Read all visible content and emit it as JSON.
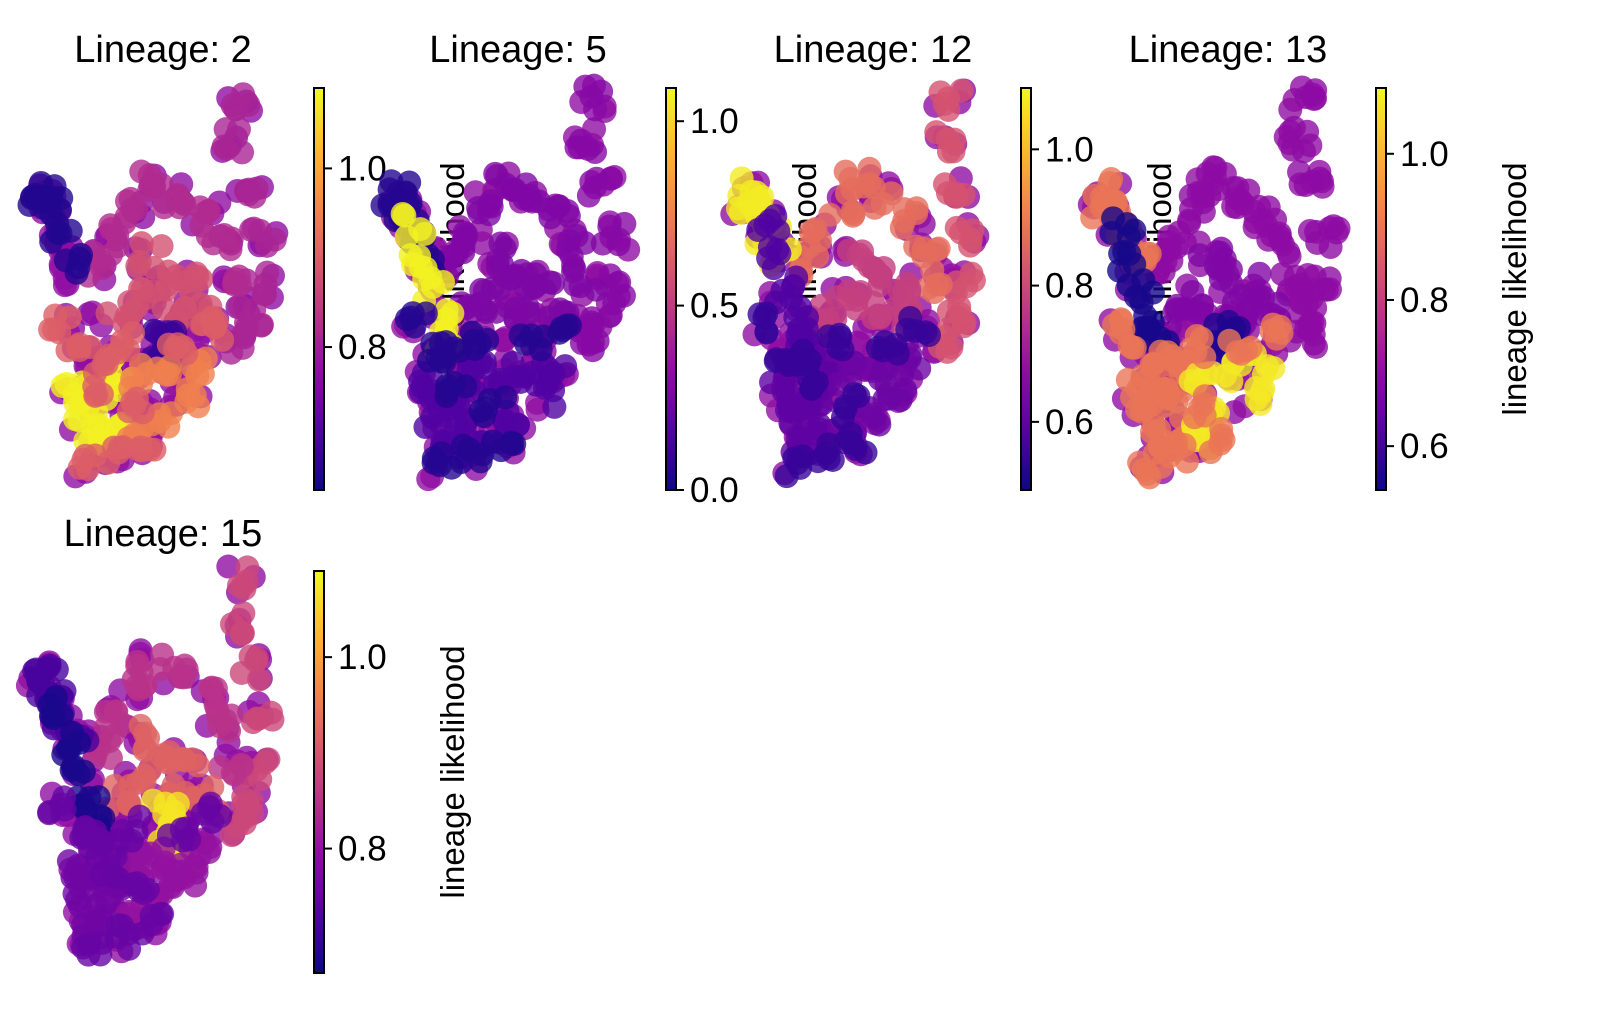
{
  "chart_data": {
    "type": "scatter",
    "colormap": "plasma",
    "point_alpha": 0.8,
    "panels": [
      {
        "title": "Lineage: 2",
        "colorbar": {
          "label": "lineage likelihood",
          "range": [
            0.64,
            1.09
          ],
          "ticks": [
            0.8,
            1.0
          ],
          "tick_labels": [
            "0.8",
            "1.0"
          ]
        },
        "regions": [
          {
            "region": "upper-arm",
            "value": 0.81
          },
          {
            "region": "upper-body",
            "value": 0.82
          },
          {
            "region": "center",
            "value": 0.88
          },
          {
            "region": "left-arm",
            "value": 0.66
          },
          {
            "region": "center-small-cluster",
            "value": 0.68
          },
          {
            "region": "lower-left",
            "value": 1.08
          },
          {
            "region": "lower-right",
            "value": 0.95
          },
          {
            "region": "bottom",
            "value": 0.9
          }
        ]
      },
      {
        "title": "Lineage: 5",
        "colorbar": {
          "label": "lineage likelihood",
          "range": [
            0.0,
            1.09
          ],
          "ticks": [
            0.0,
            0.5,
            1.0
          ],
          "tick_labels": [
            "0.0",
            "0.5",
            "1.0"
          ]
        },
        "regions": [
          {
            "region": "upper-arm",
            "value": 0.3
          },
          {
            "region": "upper-body",
            "value": 0.28
          },
          {
            "region": "center",
            "value": 0.27
          },
          {
            "region": "left-arm",
            "value": 0.05
          },
          {
            "region": "left-strip",
            "value": 1.07
          },
          {
            "region": "lower-left",
            "value": 0.15
          },
          {
            "region": "lower-right",
            "value": 0.15
          },
          {
            "region": "bottom",
            "value": 0.05
          }
        ]
      },
      {
        "title": "Lineage: 12",
        "colorbar": {
          "label": "lineage likelihood",
          "range": [
            0.5,
            1.09
          ],
          "ticks": [
            0.6,
            0.8,
            1.0
          ],
          "tick_labels": [
            "0.6",
            "0.8",
            "1.0"
          ]
        },
        "regions": [
          {
            "region": "upper-arm",
            "value": 0.82
          },
          {
            "region": "upper-body",
            "value": 0.87
          },
          {
            "region": "center",
            "value": 0.78
          },
          {
            "region": "left-arm",
            "value": 1.07
          },
          {
            "region": "left-strip",
            "value": 0.58
          },
          {
            "region": "lower-left",
            "value": 0.6
          },
          {
            "region": "lower-right",
            "value": 0.62
          },
          {
            "region": "bottom",
            "value": 0.55
          }
        ]
      },
      {
        "title": "Lineage: 13",
        "colorbar": {
          "label": "lineage likelihood",
          "range": [
            0.54,
            1.09
          ],
          "ticks": [
            0.6,
            0.8,
            1.0
          ],
          "tick_labels": [
            "0.6",
            "0.8",
            "1.0"
          ]
        },
        "regions": [
          {
            "region": "upper-arm",
            "value": 0.7
          },
          {
            "region": "upper-body",
            "value": 0.7
          },
          {
            "region": "center",
            "value": 0.68
          },
          {
            "region": "left-arm",
            "value": 0.9
          },
          {
            "region": "left-strip",
            "value": 0.55
          },
          {
            "region": "center-small-cluster",
            "value": 0.56
          },
          {
            "region": "lower-left",
            "value": 0.9
          },
          {
            "region": "lower-right",
            "value": 1.07
          },
          {
            "region": "bottom",
            "value": 0.9
          }
        ]
      },
      {
        "title": "Lineage: 15",
        "colorbar": {
          "label": "lineage likelihood",
          "range": [
            0.67,
            1.09
          ],
          "ticks": [
            0.8,
            1.0
          ],
          "tick_labels": [
            "0.8",
            "1.0"
          ]
        },
        "regions": [
          {
            "region": "upper-arm",
            "value": 0.88
          },
          {
            "region": "upper-body",
            "value": 0.85
          },
          {
            "region": "center",
            "value": 0.92
          },
          {
            "region": "left-arm",
            "value": 0.72
          },
          {
            "region": "left-strip",
            "value": 0.68
          },
          {
            "region": "center-small-cluster",
            "value": 1.07
          },
          {
            "region": "lower-left",
            "value": 0.76
          },
          {
            "region": "lower-right",
            "value": 0.8
          },
          {
            "region": "bottom",
            "value": 0.75
          }
        ]
      }
    ]
  }
}
